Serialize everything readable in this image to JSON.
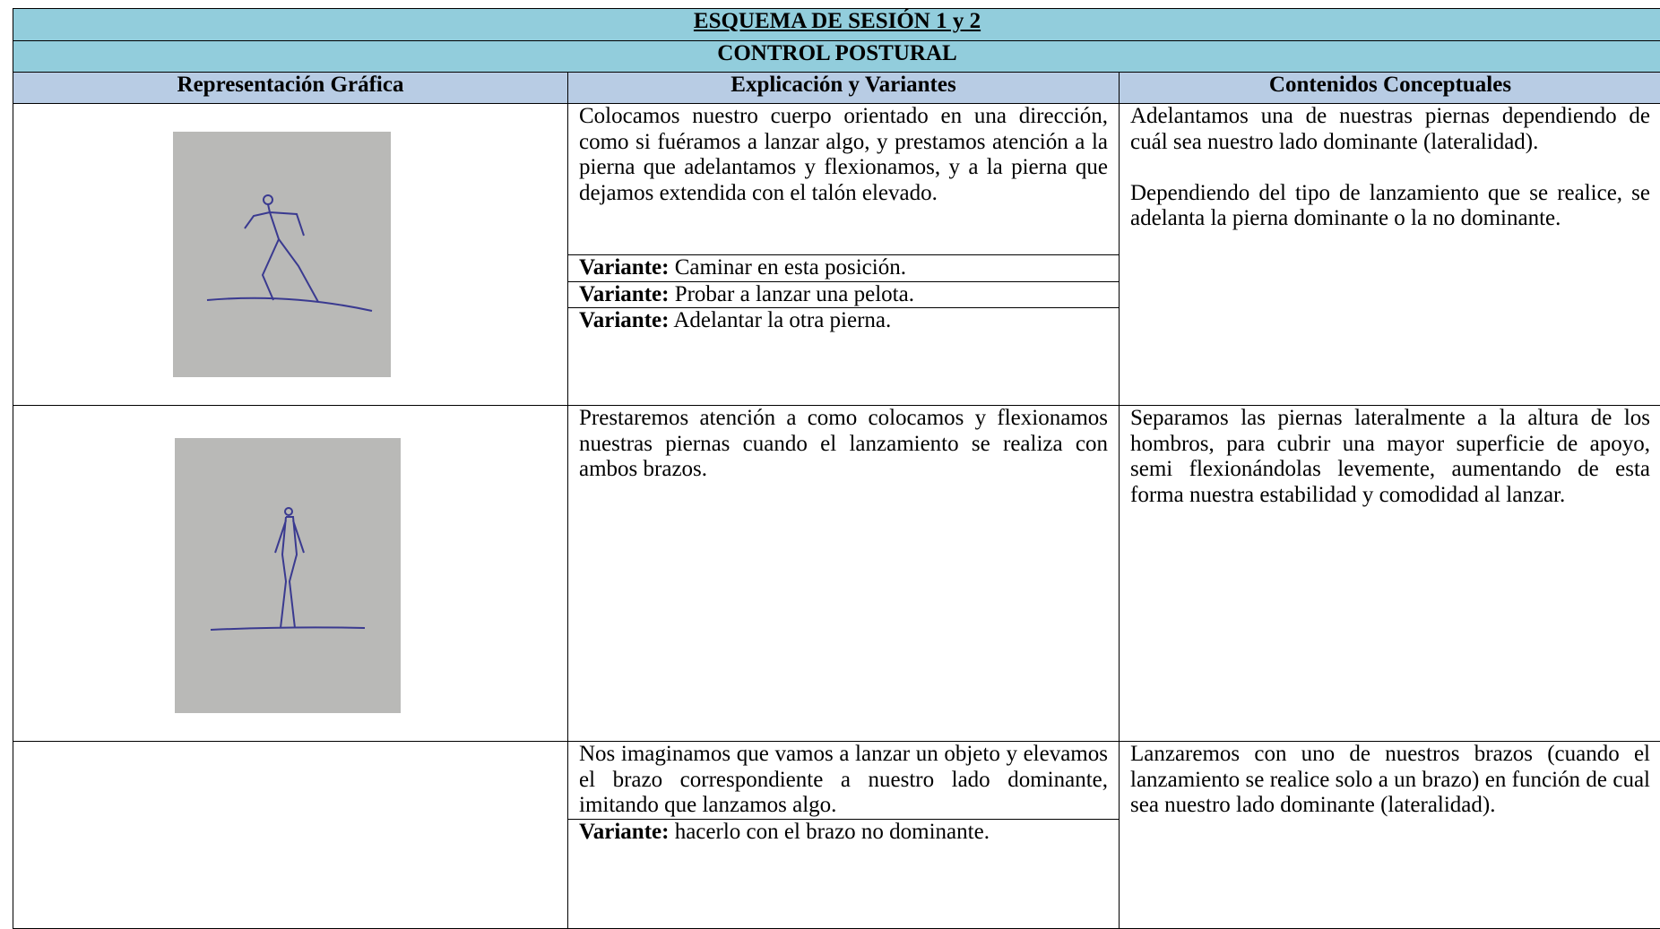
{
  "table": {
    "title": "ESQUEMA DE SESIÓN 1 y 2",
    "subtitle": "CONTROL POSTURAL",
    "headers": [
      "Representación Gráfica",
      "Explicación y Variantes",
      "Contenidos Conceptuales"
    ],
    "rows": [
      {
        "explanation": "Colocamos nuestro cuerpo orientado en una dirección, como si fuéramos a lanzar algo, y prestamos atención a la pierna que adelantamos y flexionamos, y a la pierna que dejamos extendida con el talón elevado.",
        "variants": [
          {
            "label": "Variante:",
            "text": "Caminar en esta posición."
          },
          {
            "label": "Variante:",
            "text": "Probar a lanzar una pelota."
          },
          {
            "label": "Variante:",
            "text": "Adelantar la otra pierna."
          }
        ],
        "concepts": [
          "Adelantamos una de nuestras piernas dependiendo de cuál sea nuestro lado dominante (lateralidad).",
          "Dependiendo del tipo de lanzamiento que se realice, se adelanta la pierna dominante o la no dominante."
        ]
      },
      {
        "explanation": "Prestaremos atención a como colocamos y flexionamos nuestras piernas cuando el lanzamiento se realiza con ambos brazos.",
        "variants": [],
        "concepts": [
          "Separamos las piernas lateralmente a la altura de los hombros, para cubrir una mayor superficie de apoyo, semi flexionándolas levemente, aumentando de esta forma nuestra estabilidad y comodidad al lanzar."
        ]
      },
      {
        "explanation": "Nos imaginamos que vamos a lanzar un objeto y elevamos el brazo correspondiente a nuestro lado dominante, imitando que lanzamos algo.",
        "variants": [
          {
            "label": "Variante:",
            "text": "hacerlo con el brazo no dominante."
          }
        ],
        "concepts": [
          "Lanzaremos con uno de nuestros brazos (cuando el lanzamiento se realice solo a un brazo) en función de cual sea nuestro lado dominante (lateralidad)."
        ]
      }
    ]
  }
}
